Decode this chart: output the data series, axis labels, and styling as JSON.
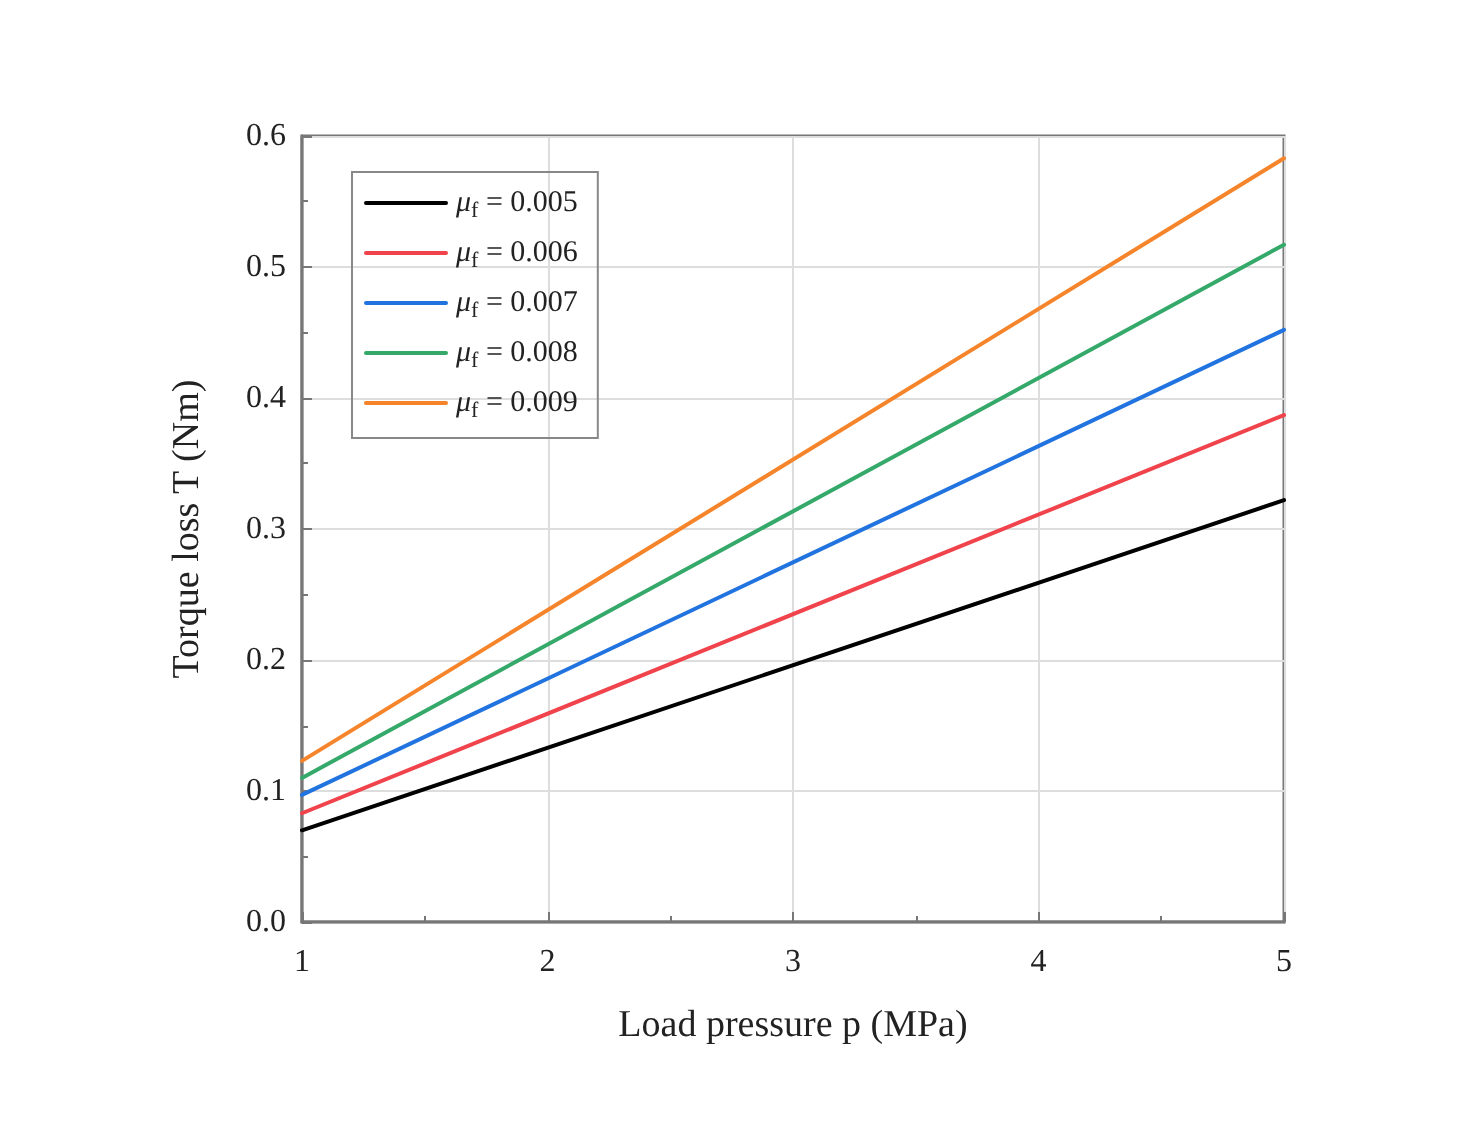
{
  "chart_data": {
    "type": "line",
    "xlabel": "Load pressure p (MPa)",
    "ylabel": "Torque loss T (Nm)",
    "x": [
      1,
      5
    ],
    "series": [
      {
        "name": "μ$_{f}$ = 0.005",
        "color": "#000000",
        "values": [
          0.07,
          0.322
        ]
      },
      {
        "name": "μ$_{f}$ = 0.006",
        "color": "#f0434b",
        "values": [
          0.083,
          0.387
        ]
      },
      {
        "name": "μ$_{f}$ = 0.007",
        "color": "#2173e0",
        "values": [
          0.097,
          0.452
        ]
      },
      {
        "name": "μ$_{f}$ = 0.008",
        "color": "#35a96a",
        "values": [
          0.11,
          0.517
        ]
      },
      {
        "name": "μ$_{f}$ = 0.009",
        "color": "#f6842a",
        "values": [
          0.123,
          0.583
        ]
      }
    ],
    "xlim": [
      1,
      5
    ],
    "xticks": [
      1,
      2,
      3,
      4,
      5
    ],
    "ylim": [
      0,
      0.6
    ],
    "yticks": [
      "0.0",
      0.1,
      0.2,
      0.3,
      0.4,
      0.5,
      0.6
    ],
    "grid": true,
    "legend": "top left",
    "marker": "none",
    "line_style": "solid"
  }
}
